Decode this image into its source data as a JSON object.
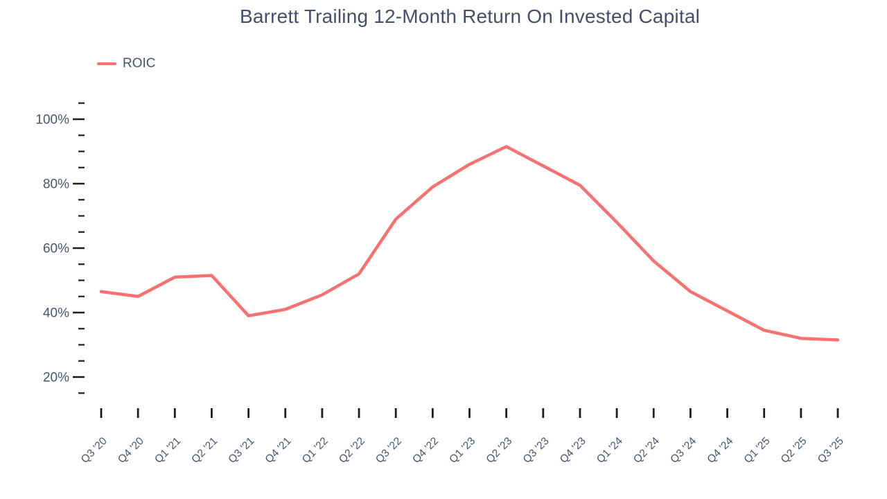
{
  "title": "Barrett Trailing 12-Month Return On Invested Capital",
  "legend": {
    "items": [
      {
        "label": "ROIC",
        "color": "#f87171"
      }
    ]
  },
  "colors": {
    "line": "#f87171",
    "text": "#475569",
    "tick": "#1c1c1c",
    "background": "#ffffff"
  },
  "chart_data": {
    "type": "line",
    "title": "Barrett Trailing 12-Month Return On Invested Capital",
    "categories": [
      "Q3 '20",
      "Q4 '20",
      "Q1 '21",
      "Q2 '21",
      "Q3 '21",
      "Q4 '21",
      "Q1 '22",
      "Q2 '22",
      "Q3 '22",
      "Q4 '22",
      "Q1 '23",
      "Q2 '23",
      "Q3 '23",
      "Q4 '23",
      "Q1 '24",
      "Q2 '24",
      "Q3 '24",
      "Q4 '24",
      "Q1 '25",
      "Q2 '25",
      "Q3 '25"
    ],
    "series": [
      {
        "name": "ROIC",
        "color": "#f87171",
        "values": [
          46.5,
          45,
          51,
          51.5,
          39,
          41,
          45.5,
          52,
          69,
          79,
          86,
          91.5,
          85.5,
          79.5,
          68,
          56,
          46.5,
          40.5,
          34.5,
          32,
          31.5
        ]
      }
    ],
    "xlabel": "",
    "ylabel": "",
    "ytick_labels": [
      "20%",
      "40%",
      "60%",
      "80%",
      "100%"
    ],
    "yticks_major": [
      20,
      40,
      60,
      80,
      100
    ],
    "yticks_minor": [
      15,
      25,
      30,
      35,
      45,
      50,
      55,
      65,
      70,
      75,
      85,
      90,
      95,
      105
    ],
    "ylim": [
      15,
      105
    ],
    "grid": false,
    "legend_position": "top-left"
  }
}
